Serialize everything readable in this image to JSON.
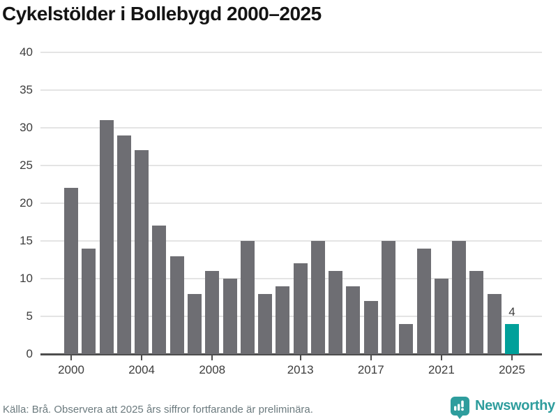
{
  "title": "Cykelstölder i Bollebygd 2000–2025",
  "footer": {
    "source_text": "Källa: Brå. Observera att 2025 års siffror fortfarande är preliminära.",
    "brand_name": "Newsworthy"
  },
  "colors": {
    "bar_default": "#6e6e73",
    "bar_highlight": "#00a09a",
    "brand_teal": "#2e9d9d",
    "gridline": "#e4e4e4",
    "axis_line": "#4d4d4d",
    "tick_label": "#3d3d3d",
    "footer_text": "#6b7a7e",
    "title_text": "#141414"
  },
  "chart_data": {
    "type": "bar",
    "title": "Cykelstölder i Bollebygd 2000–2025",
    "xlabel": "",
    "ylabel": "",
    "categories": [
      2000,
      2001,
      2002,
      2003,
      2004,
      2005,
      2006,
      2007,
      2008,
      2009,
      2010,
      2011,
      2012,
      2013,
      2014,
      2015,
      2016,
      2017,
      2018,
      2019,
      2020,
      2021,
      2022,
      2023,
      2024,
      2025
    ],
    "values": [
      22,
      14,
      31,
      29,
      27,
      17,
      13,
      8,
      11,
      10,
      15,
      8,
      9,
      12,
      15,
      11,
      9,
      7,
      15,
      4,
      14,
      10,
      15,
      11,
      8,
      4
    ],
    "highlight_category": 2025,
    "annotations": [
      {
        "category": 2025,
        "text": "4"
      }
    ],
    "xticks": [
      2000,
      2004,
      2008,
      2013,
      2017,
      2021,
      2025
    ],
    "yticks": [
      0,
      5,
      10,
      15,
      20,
      25,
      30,
      35,
      40
    ],
    "ylim": [
      0,
      40
    ],
    "grid": true,
    "legend": false
  }
}
